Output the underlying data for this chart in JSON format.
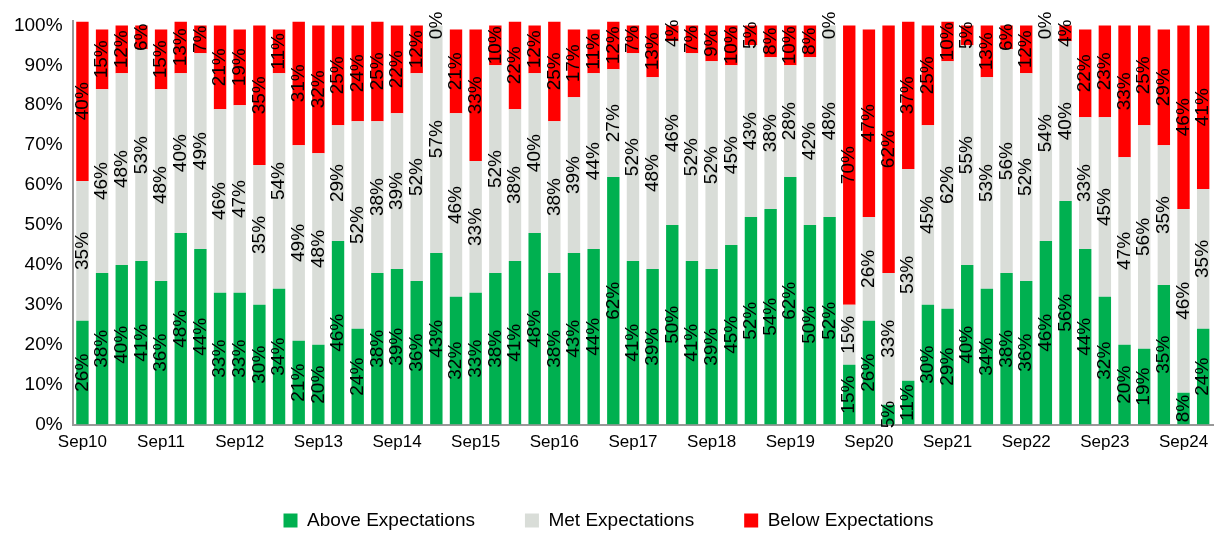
{
  "chart_data": {
    "type": "bar",
    "stacked": true,
    "grid": false,
    "legend": "bottom",
    "categories": [
      "Sep10",
      null,
      null,
      null,
      "Sep11",
      null,
      null,
      null,
      "Sep12",
      null,
      null,
      null,
      "Sep13",
      null,
      null,
      null,
      "Sep14",
      null,
      null,
      null,
      "Sep15",
      null,
      null,
      null,
      "Sep16",
      null,
      null,
      null,
      "Sep17",
      null,
      null,
      null,
      "Sep18",
      null,
      null,
      null,
      "Sep19",
      null,
      null,
      null,
      "Sep20",
      null,
      null,
      null,
      "Sep21",
      null,
      null,
      null,
      "Sep22",
      null,
      null,
      null,
      "Sep23",
      null,
      null,
      null,
      "Sep24",
      null
    ],
    "ylim": [
      0,
      101
    ],
    "yticks": [
      {
        "value": 0,
        "label": "0%"
      },
      {
        "value": 10,
        "label": "10%"
      },
      {
        "value": 20,
        "label": "20%"
      },
      {
        "value": 30,
        "label": "30%"
      },
      {
        "value": 40,
        "label": "40%"
      },
      {
        "value": 50,
        "label": "50%"
      },
      {
        "value": 60,
        "label": "60%"
      },
      {
        "value": 70,
        "label": "70%"
      },
      {
        "value": 80,
        "label": "80%"
      },
      {
        "value": 90,
        "label": "90%"
      },
      {
        "value": 100,
        "label": "100%"
      }
    ],
    "series": [
      {
        "name": "Above Expectations",
        "color": "#00b050",
        "values": [
          26,
          38,
          40,
          41,
          36,
          48,
          44,
          33,
          33,
          30,
          34,
          21,
          20,
          46,
          24,
          38,
          39,
          36,
          43,
          32,
          33,
          38,
          41,
          48,
          38,
          43,
          44,
          62,
          41,
          39,
          50,
          41,
          39,
          45,
          52,
          54,
          62,
          50,
          52,
          15,
          26,
          5,
          11,
          30,
          29,
          40,
          34,
          38,
          36,
          46,
          56,
          44,
          32,
          20,
          19,
          35,
          8,
          24
        ],
        "value_labels": [
          "26%",
          "38%",
          "40%",
          "41%",
          "36%",
          "48%",
          "44%",
          "33%",
          "33%",
          "30%",
          "34%",
          "21%",
          "20%",
          "46%",
          "24%",
          "38%",
          "39%",
          "36%",
          "43%",
          "32%",
          "33%",
          "38%",
          "41%",
          "48%",
          "38%",
          "43%",
          "44%",
          "62%",
          "41%",
          "39%",
          "50%",
          "41%",
          "39%",
          "45%",
          "52%",
          "54%",
          "62%",
          "50%",
          "52%",
          "15%",
          "26%",
          "5%",
          "11%",
          "30%",
          "29%",
          "40%",
          "34%",
          "38%",
          "36%",
          "46%",
          "56%",
          "44%",
          "32%",
          "20%",
          "19%",
          "35%",
          "8%",
          "24%"
        ]
      },
      {
        "name": "Met Expectations",
        "color": "#d9ddd8",
        "values": [
          35,
          46,
          48,
          53,
          48,
          40,
          49,
          46,
          47,
          35,
          54,
          49,
          48,
          29,
          52,
          38,
          39,
          52,
          57,
          46,
          33,
          52,
          38,
          40,
          38,
          39,
          44,
          27,
          52,
          48,
          46,
          52,
          52,
          45,
          43,
          38,
          28,
          42,
          48,
          15,
          26,
          33,
          53,
          45,
          62,
          55,
          53,
          56,
          52,
          54,
          40,
          33,
          45,
          47,
          56,
          35,
          46,
          35
        ],
        "value_labels": [
          "35%",
          "46%",
          "48%",
          "53%",
          "48%",
          "40%",
          "49%",
          "46%",
          "47%",
          "35%",
          "54%",
          "49%",
          "48%",
          "29%",
          "52%",
          "38%",
          "39%",
          "52%",
          "57%",
          "46%",
          "33%",
          "52%",
          "38%",
          "40%",
          "38%",
          "39%",
          "44%",
          "27%",
          "52%",
          "48%",
          "46%",
          "52%",
          "52%",
          "45%",
          "43%",
          "38%",
          "28%",
          "42%",
          "48%",
          "15%",
          "26%",
          "33%",
          "53%",
          "45%",
          "62%",
          "55%",
          "53%",
          "56%",
          "52%",
          "54%",
          "40%",
          "33%",
          "45%",
          "47%",
          "56%",
          "35%",
          "46%",
          "35%"
        ]
      },
      {
        "name": "Below Expectations",
        "color": "#ff0000",
        "values": [
          40,
          15,
          12,
          6,
          15,
          13,
          7,
          21,
          19,
          35,
          11,
          31,
          32,
          25,
          24,
          25,
          22,
          12,
          0,
          21,
          33,
          10,
          22,
          12,
          25,
          17,
          11,
          12,
          7,
          13,
          4,
          7,
          9,
          10,
          5,
          8,
          10,
          8,
          0,
          70,
          47,
          62,
          37,
          25,
          10,
          5,
          13,
          6,
          12,
          0,
          4,
          22,
          23,
          33,
          25,
          29,
          46,
          41
        ],
        "value_labels": [
          "40%",
          "15%",
          "12%",
          "6%",
          "15%",
          "13%",
          "7%",
          "21%",
          "19%",
          "35%",
          "11%",
          "31%",
          "32%",
          "25%",
          "24%",
          "25%",
          "22%",
          "12%",
          "0%",
          "21%",
          "33%",
          "10%",
          "22%",
          "12%",
          "25%",
          "17%",
          "11%",
          "12%",
          "7%",
          "13%",
          "4%",
          "7%",
          "9%",
          "10%",
          "5%",
          "8%",
          "10%",
          "8%",
          "0%",
          "70%",
          "47%",
          "62%",
          "37%",
          "25%",
          "10%",
          "5%",
          "13%",
          "6%",
          "12%",
          "0%",
          "4%",
          "22%",
          "23%",
          "33%",
          "25%",
          "29%",
          "46%",
          "41%"
        ]
      }
    ]
  }
}
